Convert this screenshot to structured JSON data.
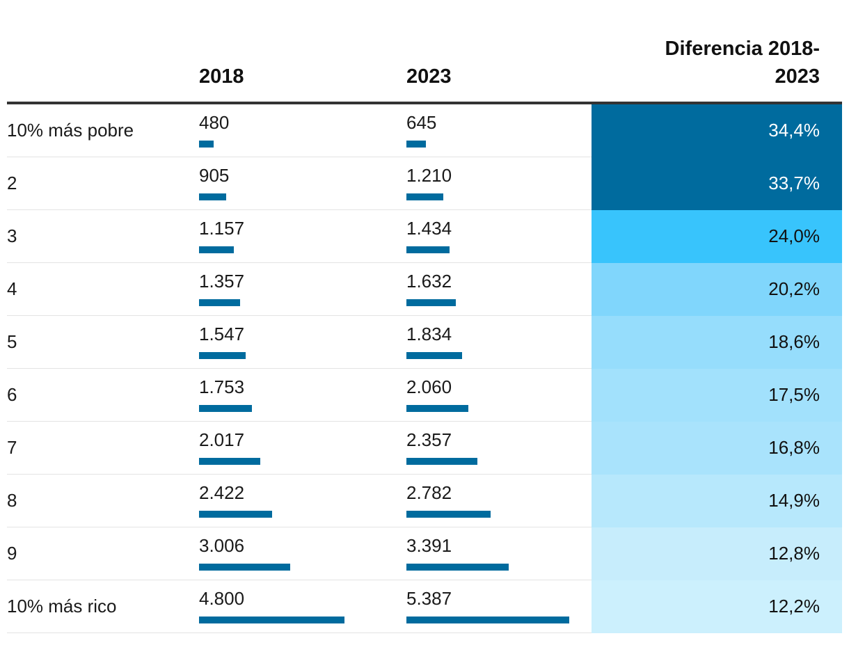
{
  "chart_data": {
    "type": "table",
    "columns": [
      "",
      "2018",
      "2023",
      "Diferencia 2018-2023"
    ],
    "header": {
      "col_2018": "2018",
      "col_2023": "2023",
      "diff_line1": "Diferencia 2018-",
      "diff_line2": "2023"
    },
    "bar_max": 5387,
    "rows": [
      {
        "label": "10% más pobre",
        "v2018": 480,
        "v2018_text": "480",
        "v2023": 645,
        "v2023_text": "645",
        "diff": 34.4,
        "diff_text": "34,4%",
        "fill": "#006b9e",
        "text_color": "#ffffff"
      },
      {
        "label": "2",
        "v2018": 905,
        "v2018_text": "905",
        "v2023": 1210,
        "v2023_text": "1.210",
        "diff": 33.7,
        "diff_text": "33,7%",
        "fill": "#006b9e",
        "text_color": "#ffffff"
      },
      {
        "label": "3",
        "v2018": 1157,
        "v2018_text": "1.157",
        "v2023": 1434,
        "v2023_text": "1.434",
        "diff": 24.0,
        "diff_text": "24,0%",
        "fill": "#38c4fc",
        "text_color": "#111111"
      },
      {
        "label": "4",
        "v2018": 1357,
        "v2018_text": "1.357",
        "v2023": 1632,
        "v2023_text": "1.632",
        "diff": 20.2,
        "diff_text": "20,2%",
        "fill": "#80d6fc",
        "text_color": "#111111"
      },
      {
        "label": "5",
        "v2018": 1547,
        "v2018_text": "1.547",
        "v2023": 1834,
        "v2023_text": "1.834",
        "diff": 18.6,
        "diff_text": "18,6%",
        "fill": "#96ddfc",
        "text_color": "#111111"
      },
      {
        "label": "6",
        "v2018": 1753,
        "v2018_text": "1.753",
        "v2023": 2060,
        "v2023_text": "2.060",
        "diff": 17.5,
        "diff_text": "17,5%",
        "fill": "#a2e1fc",
        "text_color": "#111111"
      },
      {
        "label": "7",
        "v2018": 2017,
        "v2018_text": "2.017",
        "v2023": 2357,
        "v2023_text": "2.357",
        "diff": 16.8,
        "diff_text": "16,8%",
        "fill": "#a9e3fc",
        "text_color": "#111111"
      },
      {
        "label": "8",
        "v2018": 2422,
        "v2018_text": "2.422",
        "v2023": 2782,
        "v2023_text": "2.782",
        "diff": 14.9,
        "diff_text": "14,9%",
        "fill": "#b7e8fc",
        "text_color": "#111111"
      },
      {
        "label": "9",
        "v2018": 3006,
        "v2018_text": "3.006",
        "v2023": 3391,
        "v2023_text": "3.391",
        "diff": 12.8,
        "diff_text": "12,8%",
        "fill": "#c7edfc",
        "text_color": "#111111"
      },
      {
        "label": "10% más rico",
        "v2018": 4800,
        "v2018_text": "4.800",
        "v2023": 5387,
        "v2023_text": "5.387",
        "diff": 12.2,
        "diff_text": "12,2%",
        "fill": "#ccf0fd",
        "text_color": "#111111"
      }
    ]
  }
}
